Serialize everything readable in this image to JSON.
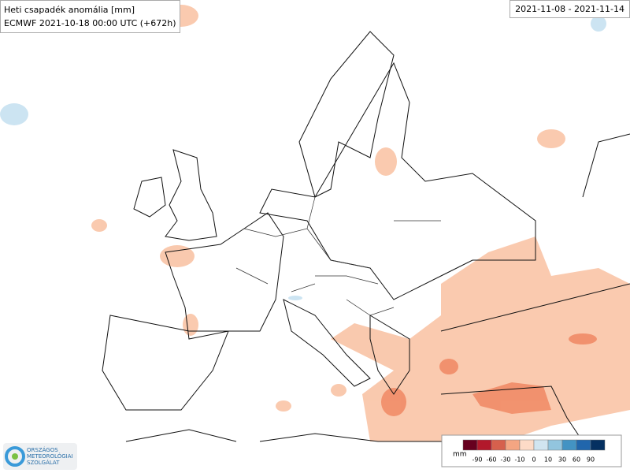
{
  "header": {
    "title": "Heti csapadék anomália [mm]",
    "subtitle": "ECMWF 2021-10-18 00:00 UTC  (+672h)"
  },
  "date_range": "2021-11-08 - 2021-11-14",
  "legend": {
    "unit": "mm",
    "ticks": [
      -90,
      -60,
      -30,
      -10,
      0,
      10,
      30,
      60,
      90
    ],
    "colors": [
      "#67001f",
      "#b2182b",
      "#d6604d",
      "#f4a582",
      "#fddbc7",
      "#d1e5f0",
      "#92c5de",
      "#4393c3",
      "#2166ac",
      "#053061"
    ]
  },
  "logo": {
    "lines": [
      "ORSZÁGOS",
      "METEOROLÓGIAI",
      "SZOLGÁLAT"
    ]
  }
}
